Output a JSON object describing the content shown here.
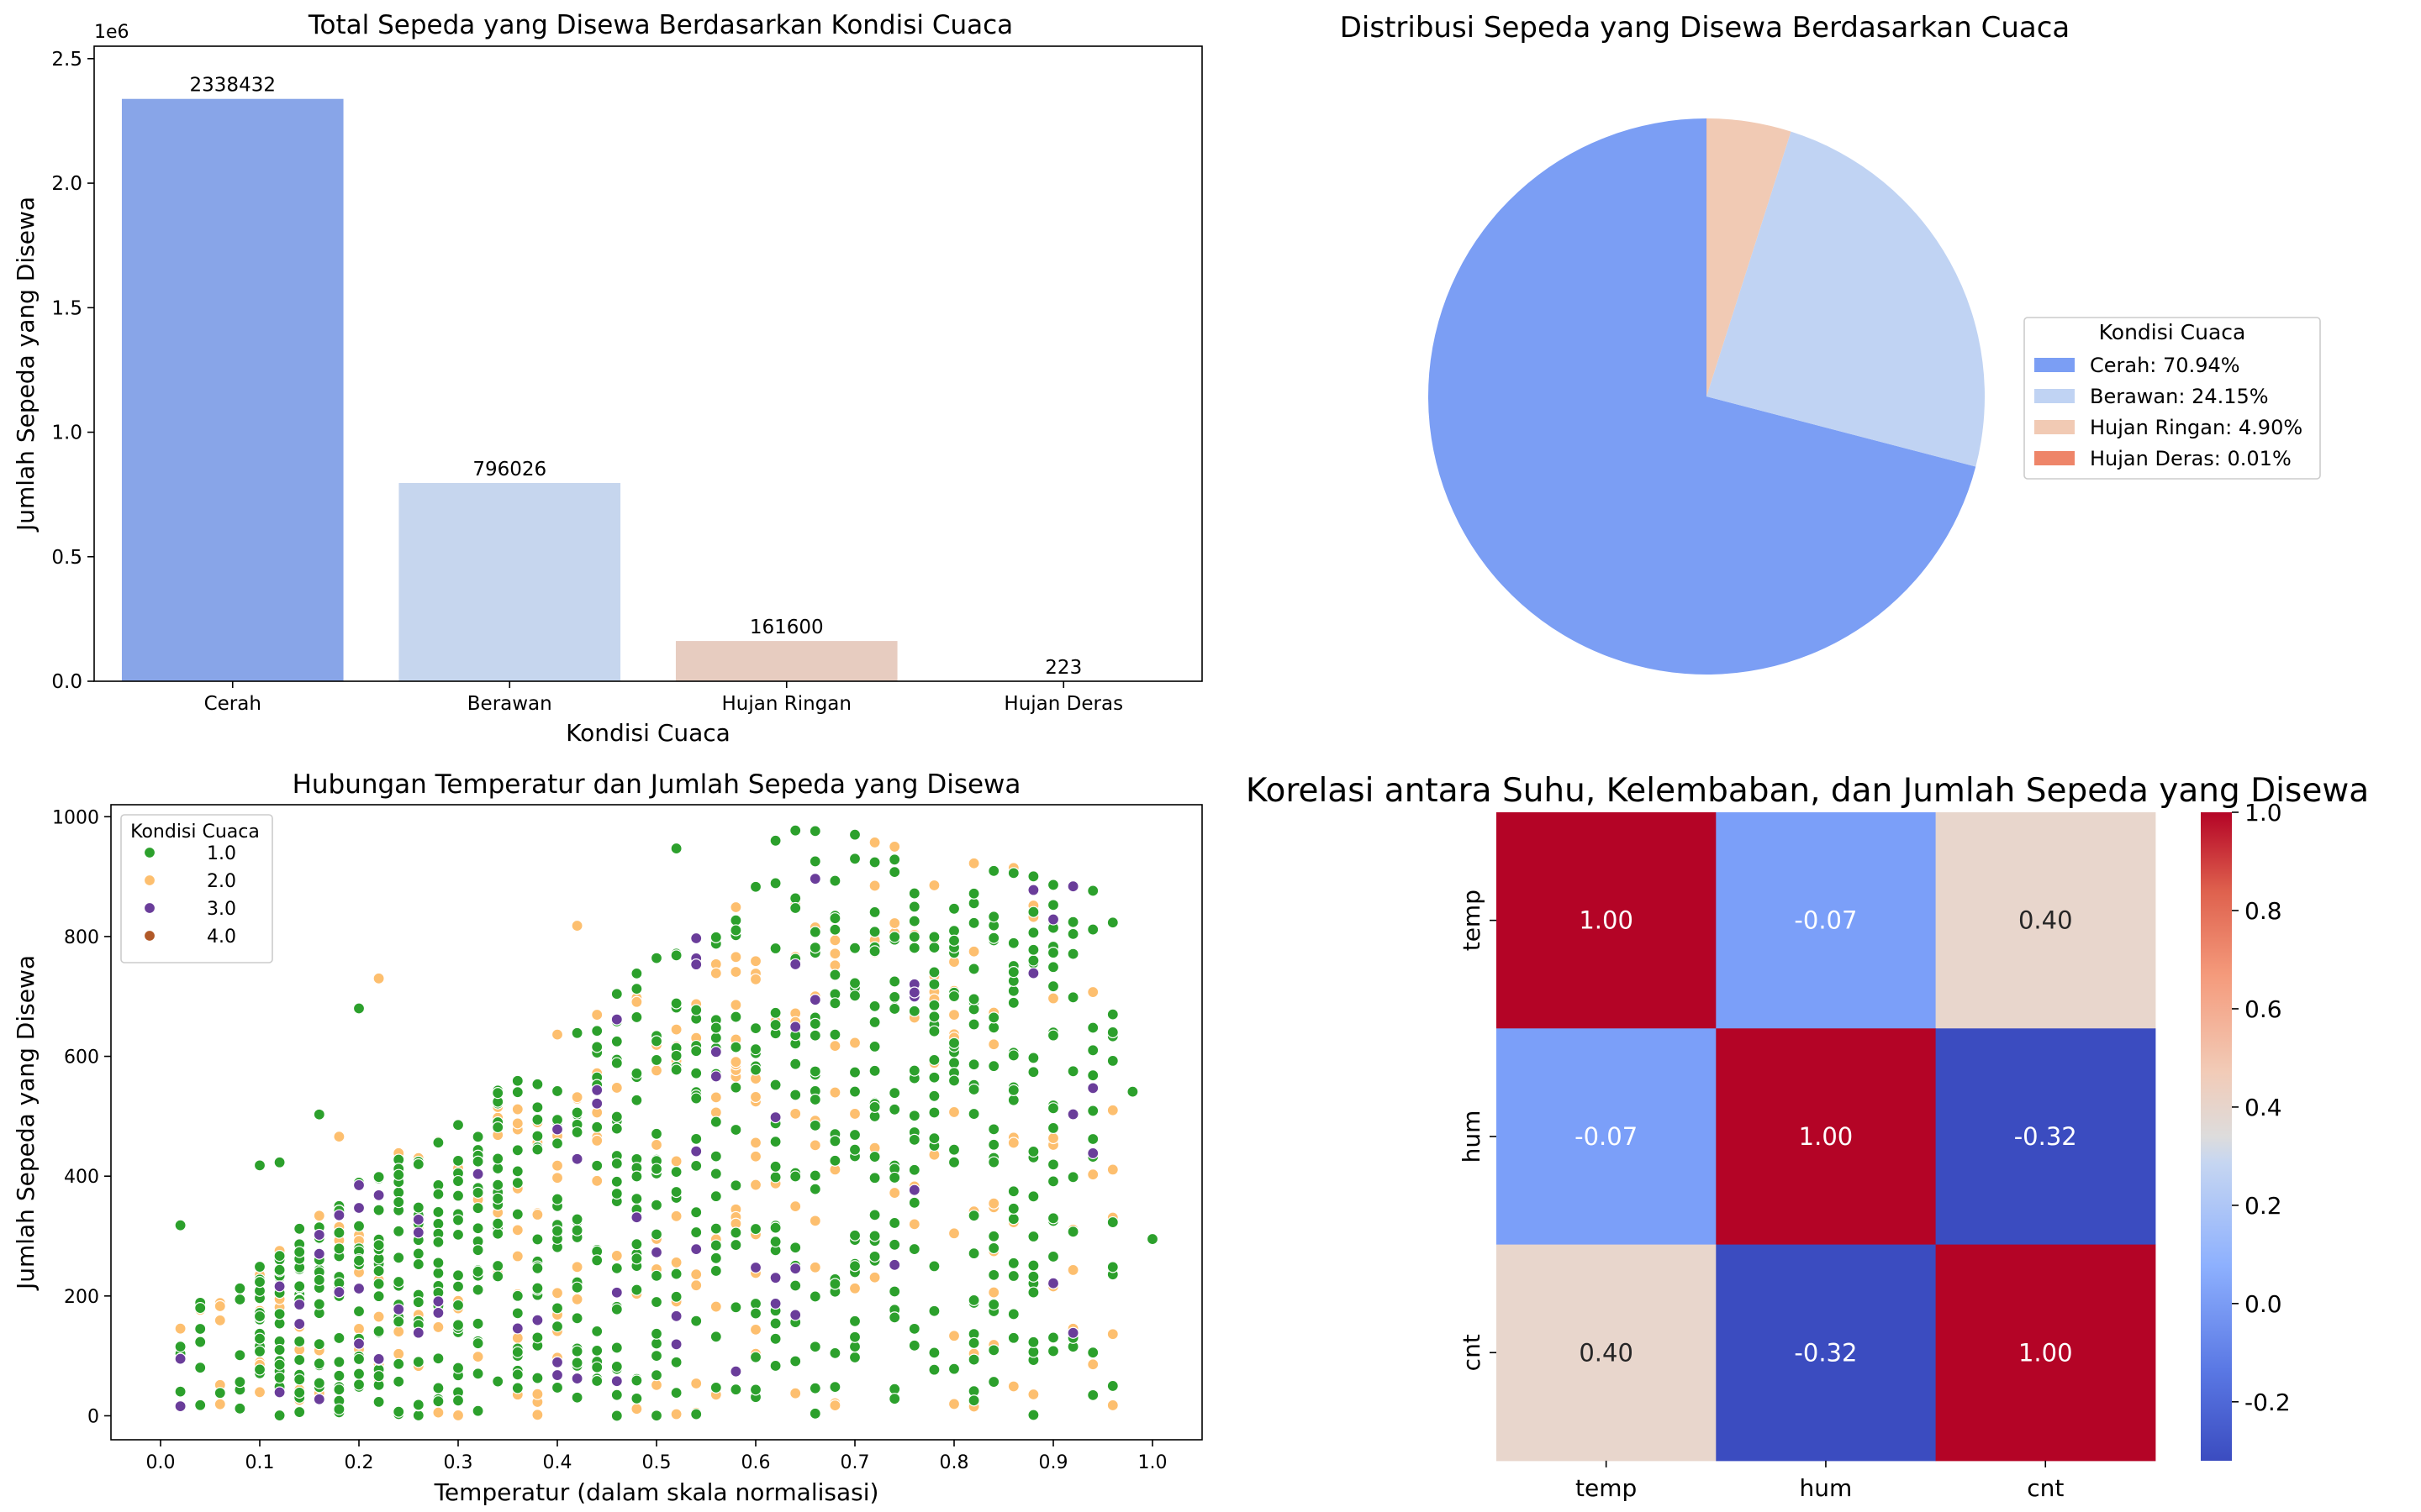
{
  "chart_data": [
    {
      "type": "bar",
      "title": "Total Sepeda yang Disewa Berdasarkan Kondisi Cuaca",
      "xlabel": "Kondisi Cuaca",
      "ylabel": "Jumlah Sepeda yang Disewa",
      "y_offset_text": "1e6",
      "categories": [
        "Cerah",
        "Berawan",
        "Hujan Ringan",
        "Hujan Deras"
      ],
      "values": [
        2338432,
        796026,
        161600,
        223
      ],
      "value_labels": [
        "2338432",
        "796026",
        "161600",
        "223"
      ],
      "colors": [
        "#88a5e8",
        "#c6d6ee",
        "#e7ccc0",
        "#e08a6f"
      ],
      "ylim": [
        0,
        2550000
      ],
      "yticks": [
        0,
        500000,
        1000000,
        1500000,
        2000000,
        2500000
      ],
      "ytick_labels": [
        "0.0",
        "0.5",
        "1.0",
        "1.5",
        "2.0",
        "2.5"
      ]
    },
    {
      "type": "pie",
      "title": "Distribusi Sepeda yang Disewa Berdasarkan Cuaca",
      "legend_title": "Kondisi Cuaca",
      "legend_position": "right",
      "labels": [
        "Cerah: 70.94%",
        "Berawan: 24.15%",
        "Hujan Ringan: 4.90%",
        "Hujan Deras: 0.01%"
      ],
      "values": [
        70.94,
        24.15,
        4.9,
        0.01
      ],
      "colors": [
        "#7b9ef4",
        "#c0d3f3",
        "#f1cab4",
        "#ee8569"
      ]
    },
    {
      "type": "scatter",
      "title": "Hubungan Temperatur dan Jumlah Sepeda yang Disewa",
      "xlabel": "Temperatur (dalam skala normalisasi)",
      "ylabel": "Jumlah Sepeda yang Disewa",
      "xlim": [
        -0.05,
        1.05
      ],
      "ylim": [
        -40,
        1020
      ],
      "xticks": [
        "0.0",
        "0.1",
        "0.2",
        "0.3",
        "0.4",
        "0.5",
        "0.6",
        "0.7",
        "0.8",
        "0.9",
        "1.0"
      ],
      "yticks": [
        "0",
        "200",
        "400",
        "600",
        "800",
        "1000"
      ],
      "legend_title": "Kondisi Cuaca",
      "legend_position": "top-left",
      "series": [
        {
          "name": "1.0",
          "color": "#2ca02c"
        },
        {
          "name": "2.0",
          "color": "#fdbf6f"
        },
        {
          "name": "3.0",
          "color": "#6a3d9a"
        },
        {
          "name": "4.0",
          "color": "#b15928"
        }
      ],
      "highlight_points": [
        {
          "x": 0.02,
          "y": 318,
          "s": 0
        },
        {
          "x": 0.04,
          "y": 180,
          "s": 0
        },
        {
          "x": 0.1,
          "y": 418,
          "s": 0
        },
        {
          "x": 0.12,
          "y": 423,
          "s": 0
        },
        {
          "x": 0.16,
          "y": 503,
          "s": 0
        },
        {
          "x": 0.18,
          "y": 466,
          "s": 1
        },
        {
          "x": 0.22,
          "y": 730,
          "s": 1
        },
        {
          "x": 0.2,
          "y": 680,
          "s": 0
        },
        {
          "x": 0.52,
          "y": 947,
          "s": 0
        },
        {
          "x": 0.62,
          "y": 960,
          "s": 0
        },
        {
          "x": 0.64,
          "y": 977,
          "s": 0
        },
        {
          "x": 0.66,
          "y": 976,
          "s": 0
        },
        {
          "x": 0.7,
          "y": 970,
          "s": 0
        },
        {
          "x": 0.72,
          "y": 957,
          "s": 1
        },
        {
          "x": 0.74,
          "y": 950,
          "s": 1
        },
        {
          "x": 0.42,
          "y": 818,
          "s": 1
        },
        {
          "x": 0.9,
          "y": 773,
          "s": 0
        },
        {
          "x": 0.92,
          "y": 771,
          "s": 0
        },
        {
          "x": 0.94,
          "y": 462,
          "s": 0
        },
        {
          "x": 0.98,
          "y": 541,
          "s": 0
        },
        {
          "x": 1.0,
          "y": 295,
          "s": 0
        }
      ]
    },
    {
      "type": "heatmap",
      "title": "Korelasi antara Suhu, Kelembaban, dan Jumlah Sepeda yang Disewa",
      "row_labels": [
        "temp",
        "hum",
        "cnt"
      ],
      "col_labels": [
        "temp",
        "hum",
        "cnt"
      ],
      "matrix": [
        [
          1.0,
          -0.07,
          0.4
        ],
        [
          -0.07,
          1.0,
          -0.32
        ],
        [
          0.4,
          -0.32,
          1.0
        ]
      ],
      "annotations": [
        [
          "1.00",
          "-0.07",
          "0.40"
        ],
        [
          "-0.07",
          "1.00",
          "-0.32"
        ],
        [
          "0.40",
          "-0.32",
          "1.00"
        ]
      ],
      "cell_colors": [
        [
          "#b40426",
          "#7b9ff9",
          "#e8d6cc"
        ],
        [
          "#7b9ff9",
          "#b40426",
          "#3b4cc0"
        ],
        [
          "#e8d6cc",
          "#3b4cc0",
          "#b40426"
        ]
      ],
      "colorbar_range": [
        -0.32,
        1.0
      ],
      "colorbar_ticks": [
        "1.0",
        "0.8",
        "0.6",
        "0.4",
        "0.2",
        "0.0",
        "-0.2"
      ],
      "colormap": "coolwarm"
    }
  ]
}
